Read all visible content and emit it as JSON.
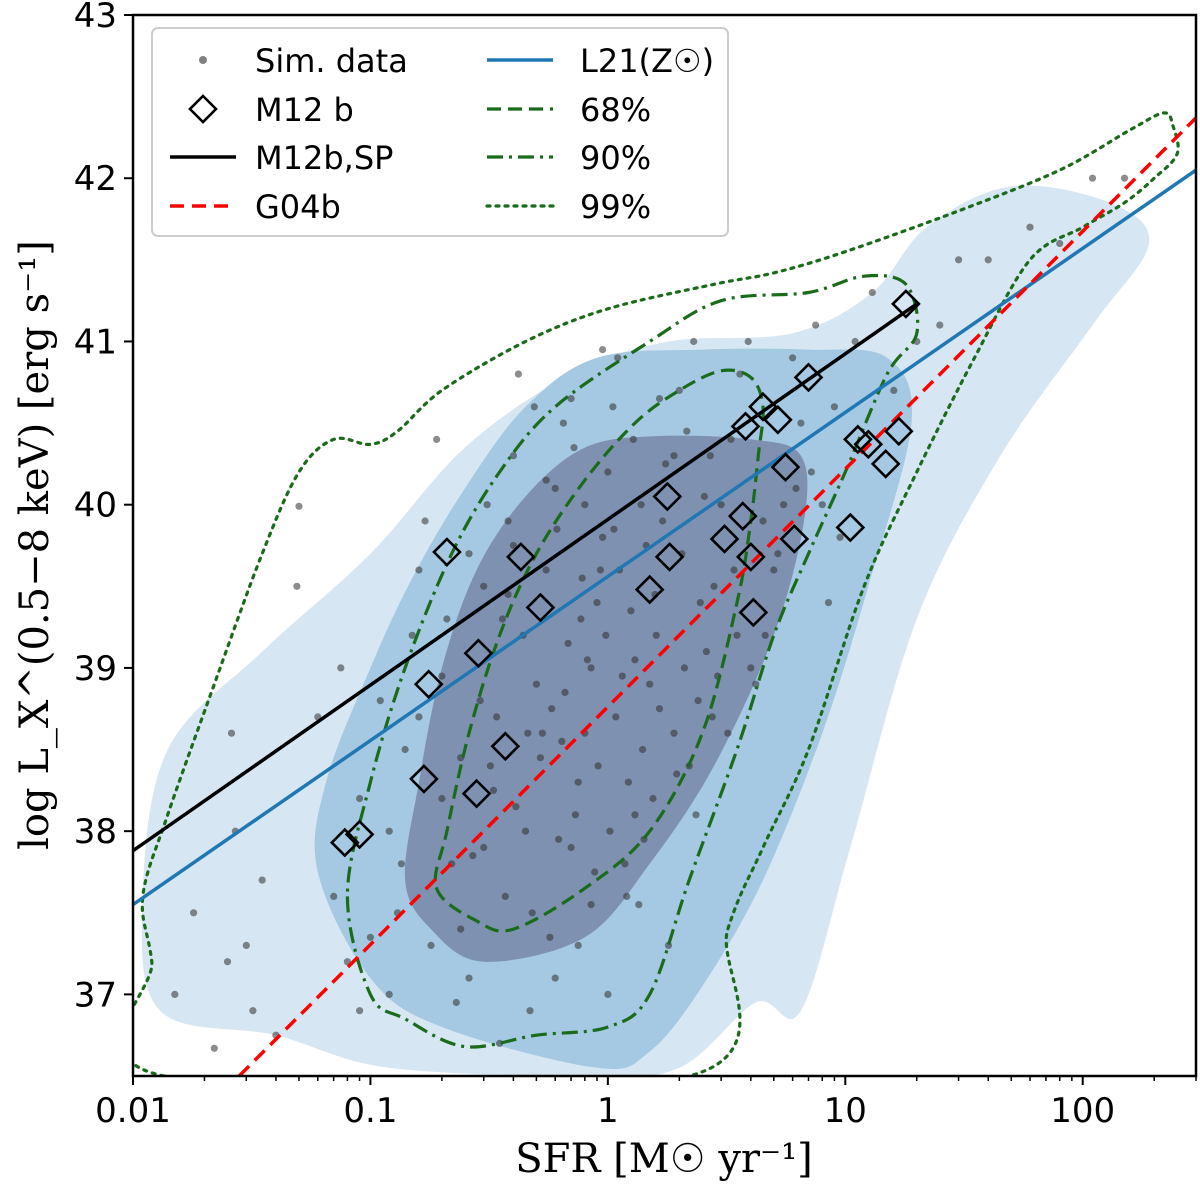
{
  "chart_data": {
    "type": "scatter",
    "xscale": "log",
    "xlim": [
      0.01,
      300
    ],
    "ylim": [
      36.5,
      43
    ],
    "x_ticks": [
      0.01,
      0.1,
      1,
      10,
      100
    ],
    "x_tick_labels": [
      "0.01",
      "0.1",
      "1",
      "10",
      "100"
    ],
    "y_ticks": [
      37,
      38,
      39,
      40,
      41,
      42,
      43
    ],
    "y_tick_labels": [
      "37",
      "38",
      "39",
      "40",
      "41",
      "42",
      "43"
    ],
    "xlabel": "SFR [M☉ yr⁻¹]",
    "ylabel": "log L_X^(0.5−8 keV) [erg s⁻¹]",
    "legend": {
      "position": "top-left",
      "entries": [
        {
          "id": "sim",
          "label": "Sim. data",
          "style": "gray-dot"
        },
        {
          "id": "m12b",
          "label": "M12 b",
          "style": "diamond"
        },
        {
          "id": "m12bsp",
          "label": "M12b,SP",
          "style": "black-line"
        },
        {
          "id": "g04b",
          "label": "G04b",
          "style": "red-dashed"
        },
        {
          "id": "l21",
          "label": "L21(Z☉)",
          "style": "blue-line"
        },
        {
          "id": "c68",
          "label": "68%",
          "style": "green-dashed"
        },
        {
          "id": "c90",
          "label": "90%",
          "style": "green-dashdot"
        },
        {
          "id": "c99",
          "label": "99%",
          "style": "green-dotted"
        }
      ]
    },
    "colors": {
      "sim": "#808080",
      "m12bsp": "#000000",
      "g04b": "#ff0000",
      "l21": "#1f77b4",
      "contour": "#1a6b1a",
      "kde_outer": "#d6e6f2",
      "kde_mid": "#a5c9e2",
      "kde_inner": "#7a8bab"
    },
    "lines": [
      {
        "name": "M12b,SP",
        "x": [
          0.01,
          20
        ],
        "y": [
          37.88,
          41.23
        ]
      },
      {
        "name": "G04b",
        "x": [
          0.028,
          300
        ],
        "y": [
          36.5,
          42.37
        ]
      },
      {
        "name": "L21(Z☉)",
        "x": [
          0.01,
          300
        ],
        "y": [
          37.55,
          42.05
        ]
      }
    ],
    "m12b_points": [
      {
        "x": 0.078,
        "y": 37.93
      },
      {
        "x": 0.09,
        "y": 37.98
      },
      {
        "x": 0.168,
        "y": 38.32
      },
      {
        "x": 0.176,
        "y": 38.9
      },
      {
        "x": 0.21,
        "y": 39.71
      },
      {
        "x": 0.28,
        "y": 38.23
      },
      {
        "x": 0.285,
        "y": 39.09
      },
      {
        "x": 0.37,
        "y": 38.52
      },
      {
        "x": 0.43,
        "y": 39.68
      },
      {
        "x": 0.52,
        "y": 39.37
      },
      {
        "x": 1.5,
        "y": 39.48
      },
      {
        "x": 1.78,
        "y": 40.05
      },
      {
        "x": 1.82,
        "y": 39.68
      },
      {
        "x": 3.1,
        "y": 39.79
      },
      {
        "x": 3.7,
        "y": 39.93
      },
      {
        "x": 3.8,
        "y": 40.48
      },
      {
        "x": 4.0,
        "y": 39.68
      },
      {
        "x": 4.1,
        "y": 39.34
      },
      {
        "x": 4.5,
        "y": 40.6
      },
      {
        "x": 5.2,
        "y": 40.52
      },
      {
        "x": 5.6,
        "y": 40.23
      },
      {
        "x": 6.1,
        "y": 39.79
      },
      {
        "x": 7.0,
        "y": 40.78
      },
      {
        "x": 10.5,
        "y": 39.86
      },
      {
        "x": 11.3,
        "y": 40.4
      },
      {
        "x": 12.5,
        "y": 40.37
      },
      {
        "x": 14.8,
        "y": 40.25
      },
      {
        "x": 16.8,
        "y": 40.45
      },
      {
        "x": 18.0,
        "y": 41.23
      }
    ],
    "kde_outer": [
      [
        0.011,
        37.6
      ],
      [
        0.013,
        36.9
      ],
      [
        0.04,
        36.75
      ],
      [
        0.12,
        36.55
      ],
      [
        0.8,
        36.5
      ],
      [
        2.0,
        36.55
      ],
      [
        4.2,
        36.95
      ],
      [
        6.5,
        36.9
      ],
      [
        10.5,
        37.9
      ],
      [
        20,
        39.3
      ],
      [
        45,
        40.3
      ],
      [
        110,
        41.1
      ],
      [
        190,
        41.6
      ],
      [
        130,
        41.85
      ],
      [
        50,
        41.95
      ],
      [
        22,
        41.7
      ],
      [
        13,
        41.3
      ],
      [
        6,
        41.05
      ],
      [
        1.8,
        41.0
      ],
      [
        0.7,
        40.8
      ],
      [
        0.25,
        40.35
      ],
      [
        0.1,
        39.7
      ],
      [
        0.035,
        39.1
      ],
      [
        0.014,
        38.5
      ]
    ],
    "kde_mid": [
      [
        0.06,
        37.75
      ],
      [
        0.1,
        37.1
      ],
      [
        0.2,
        36.8
      ],
      [
        0.9,
        36.55
      ],
      [
        1.5,
        36.65
      ],
      [
        2.5,
        37.05
      ],
      [
        4.5,
        37.7
      ],
      [
        8,
        38.6
      ],
      [
        12.5,
        39.5
      ],
      [
        19,
        40.5
      ],
      [
        15,
        40.9
      ],
      [
        7,
        40.95
      ],
      [
        2.5,
        40.95
      ],
      [
        0.9,
        40.9
      ],
      [
        0.45,
        40.6
      ],
      [
        0.25,
        40.1
      ],
      [
        0.15,
        39.55
      ],
      [
        0.1,
        39.0
      ],
      [
        0.065,
        38.3
      ]
    ],
    "kde_inner": [
      [
        0.14,
        37.7
      ],
      [
        0.18,
        37.4
      ],
      [
        0.3,
        37.2
      ],
      [
        0.8,
        37.35
      ],
      [
        1.5,
        37.8
      ],
      [
        2.8,
        38.4
      ],
      [
        5,
        39.2
      ],
      [
        6.7,
        39.9
      ],
      [
        6.5,
        40.3
      ],
      [
        4,
        40.4
      ],
      [
        1.6,
        40.42
      ],
      [
        0.8,
        40.35
      ],
      [
        0.45,
        40.05
      ],
      [
        0.28,
        39.6
      ],
      [
        0.2,
        39.0
      ],
      [
        0.16,
        38.3
      ]
    ],
    "contour_68": [
      [
        0.19,
        37.65
      ],
      [
        0.28,
        37.45
      ],
      [
        0.4,
        37.4
      ],
      [
        0.8,
        37.65
      ],
      [
        1.5,
        38.0
      ],
      [
        2.5,
        38.6
      ],
      [
        3.5,
        39.4
      ],
      [
        4.0,
        39.9
      ],
      [
        4.3,
        40.3
      ],
      [
        4.5,
        40.6
      ],
      [
        4.0,
        40.78
      ],
      [
        3.0,
        40.82
      ],
      [
        2.0,
        40.7
      ],
      [
        1.3,
        40.5
      ],
      [
        0.8,
        40.15
      ],
      [
        0.5,
        39.7
      ],
      [
        0.35,
        39.2
      ],
      [
        0.26,
        38.6
      ],
      [
        0.21,
        38.0
      ]
    ],
    "contour_90": [
      [
        0.08,
        37.6
      ],
      [
        0.1,
        37.0
      ],
      [
        0.14,
        36.85
      ],
      [
        0.25,
        36.68
      ],
      [
        0.5,
        36.75
      ],
      [
        1.0,
        36.8
      ],
      [
        1.5,
        37.0
      ],
      [
        2.2,
        37.7
      ],
      [
        3.5,
        38.5
      ],
      [
        5,
        39.2
      ],
      [
        7,
        39.7
      ],
      [
        10,
        40.2
      ],
      [
        15,
        40.8
      ],
      [
        20,
        41.05
      ],
      [
        18,
        41.35
      ],
      [
        12,
        41.4
      ],
      [
        7,
        41.3
      ],
      [
        3,
        41.25
      ],
      [
        1.5,
        41.0
      ],
      [
        0.6,
        40.6
      ],
      [
        0.35,
        40.2
      ],
      [
        0.22,
        39.7
      ],
      [
        0.14,
        39.0
      ],
      [
        0.1,
        38.3
      ]
    ],
    "contour_99": [
      [
        0.0135,
        36.5
      ],
      [
        0.012,
        37.2
      ],
      [
        0.011,
        37.6
      ],
      [
        0.014,
        38.1
      ],
      [
        0.022,
        38.9
      ],
      [
        0.035,
        39.7
      ],
      [
        0.05,
        40.2
      ],
      [
        0.07,
        40.4
      ],
      [
        0.1,
        40.37
      ],
      [
        0.13,
        40.45
      ],
      [
        0.2,
        40.7
      ],
      [
        0.45,
        41.0
      ],
      [
        1.0,
        41.2
      ],
      [
        2.8,
        41.35
      ],
      [
        5,
        41.42
      ],
      [
        10,
        41.55
      ],
      [
        30,
        41.8
      ],
      [
        80,
        42.05
      ],
      [
        160,
        42.3
      ],
      [
        220,
        42.4
      ],
      [
        240,
        42.32
      ],
      [
        250,
        42.15
      ],
      [
        200,
        42.0
      ],
      [
        150,
        41.85
      ],
      [
        100,
        41.7
      ],
      [
        60,
        41.5
      ],
      [
        35,
        40.9
      ],
      [
        20,
        40.2
      ],
      [
        12,
        39.5
      ],
      [
        7,
        38.5
      ],
      [
        4.5,
        37.9
      ],
      [
        3.2,
        37.4
      ],
      [
        2.2,
        36.5
      ]
    ],
    "sim_points": [
      [
        0.022,
        36.67
      ],
      [
        0.025,
        37.2
      ],
      [
        0.03,
        37.3
      ],
      [
        0.027,
        38.0
      ],
      [
        0.026,
        38.6
      ],
      [
        0.05,
        39.99
      ],
      [
        0.049,
        39.5
      ],
      [
        0.07,
        37.6
      ],
      [
        0.08,
        37.2
      ],
      [
        0.09,
        36.9
      ],
      [
        0.1,
        37.35
      ],
      [
        0.12,
        37.0
      ],
      [
        0.13,
        37.5
      ],
      [
        0.14,
        38.5
      ],
      [
        0.11,
        38.8
      ],
      [
        0.15,
        39.2
      ],
      [
        0.16,
        39.6
      ],
      [
        0.17,
        39.9
      ],
      [
        0.19,
        40.4
      ],
      [
        0.2,
        38.2
      ],
      [
        0.22,
        37.8
      ],
      [
        0.24,
        37.4
      ],
      [
        0.26,
        37.1
      ],
      [
        0.3,
        37.9
      ],
      [
        0.32,
        38.4
      ],
      [
        0.34,
        38.7
      ],
      [
        0.36,
        39.3
      ],
      [
        0.38,
        39.9
      ],
      [
        0.4,
        40.3
      ],
      [
        0.42,
        40.8
      ],
      [
        0.45,
        38.0
      ],
      [
        0.48,
        37.5
      ],
      [
        0.5,
        38.9
      ],
      [
        0.55,
        39.6
      ],
      [
        0.6,
        40.1
      ],
      [
        0.65,
        40.5
      ],
      [
        0.7,
        37.9
      ],
      [
        0.75,
        38.3
      ],
      [
        0.8,
        38.6
      ],
      [
        0.85,
        39.0
      ],
      [
        0.9,
        39.4
      ],
      [
        0.95,
        39.8
      ],
      [
        1.0,
        40.2
      ],
      [
        1.05,
        40.6
      ],
      [
        1.1,
        40.9
      ],
      [
        1.2,
        37.6
      ],
      [
        1.3,
        38.1
      ],
      [
        1.4,
        38.5
      ],
      [
        1.5,
        38.9
      ],
      [
        1.6,
        39.2
      ],
      [
        1.7,
        39.9
      ],
      [
        1.9,
        40.3
      ],
      [
        2.0,
        40.7
      ],
      [
        2.2,
        38.4
      ],
      [
        2.4,
        38.8
      ],
      [
        2.6,
        39.1
      ],
      [
        2.8,
        39.5
      ],
      [
        3.0,
        40.0
      ],
      [
        3.3,
        40.4
      ],
      [
        3.6,
        40.8
      ],
      [
        3.9,
        41.0
      ],
      [
        4.2,
        38.9
      ],
      [
        4.6,
        39.2
      ],
      [
        5.0,
        39.6
      ],
      [
        5.5,
        40.0
      ],
      [
        6.0,
        40.9
      ],
      [
        6.5,
        40.5
      ],
      [
        7.5,
        41.1
      ],
      [
        8.5,
        39.4
      ],
      [
        9,
        40.6
      ],
      [
        11,
        41.0
      ],
      [
        13,
        41.3
      ],
      [
        16,
        40.7
      ],
      [
        20,
        41.0
      ],
      [
        25,
        41.1
      ],
      [
        30,
        41.5
      ],
      [
        40,
        41.5
      ],
      [
        60,
        41.7
      ],
      [
        80,
        41.6
      ],
      [
        110,
        42.0
      ],
      [
        150,
        42.0
      ],
      [
        0.33,
        38.25
      ],
      [
        0.58,
        38.75
      ],
      [
        0.68,
        39.15
      ],
      [
        0.78,
        39.55
      ],
      [
        1.15,
        38.95
      ],
      [
        1.25,
        39.35
      ],
      [
        1.45,
        39.75
      ],
      [
        0.52,
        38.45
      ],
      [
        0.62,
        37.95
      ],
      [
        0.88,
        37.75
      ],
      [
        1.35,
        37.55
      ],
      [
        0.29,
        38.8
      ],
      [
        0.44,
        39.2
      ],
      [
        0.55,
        40.15
      ],
      [
        0.72,
        40.35
      ],
      [
        1.65,
        40.65
      ],
      [
        2.3,
        41.0
      ],
      [
        2.7,
        40.3
      ],
      [
        3.4,
        39.6
      ],
      [
        4.0,
        39.0
      ],
      [
        5.2,
        39.7
      ],
      [
        7.2,
        40.2
      ],
      [
        9.5,
        39.8
      ],
      [
        0.18,
        37.3
      ],
      [
        0.23,
        36.95
      ],
      [
        0.35,
        36.7
      ],
      [
        0.47,
        36.9
      ],
      [
        0.6,
        37.1
      ],
      [
        0.75,
        37.3
      ],
      [
        1.0,
        37.0
      ],
      [
        1.8,
        37.3
      ],
      [
        0.16,
        38.7
      ],
      [
        0.21,
        39.3
      ],
      [
        0.26,
        39.7
      ],
      [
        0.31,
        40.0
      ],
      [
        0.7,
        40.65
      ],
      [
        0.95,
        40.95
      ],
      [
        0.41,
        38.15
      ],
      [
        0.53,
        38.6
      ],
      [
        0.66,
        38.85
      ],
      [
        0.82,
        39.05
      ],
      [
        0.98,
        39.2
      ],
      [
        1.08,
        38.7
      ],
      [
        1.22,
        38.3
      ],
      [
        1.55,
        38.2
      ],
      [
        1.9,
        38.6
      ],
      [
        2.1,
        39.0
      ],
      [
        2.45,
        39.4
      ],
      [
        2.9,
        38.95
      ],
      [
        3.2,
        38.6
      ],
      [
        0.24,
        38.45
      ],
      [
        0.37,
        37.6
      ],
      [
        0.57,
        37.35
      ],
      [
        0.91,
        38.4
      ],
      [
        1.12,
        39.6
      ],
      [
        1.38,
        40.0
      ],
      [
        1.58,
        39.45
      ],
      [
        2.05,
        39.7
      ],
      [
        2.55,
        40.05
      ],
      [
        0.49,
        40.6
      ],
      [
        0.8,
        40.0
      ],
      [
        1.28,
        40.4
      ],
      [
        1.75,
        40.25
      ],
      [
        2.15,
        40.45
      ],
      [
        0.38,
        39.45
      ],
      [
        0.61,
        39.85
      ],
      [
        0.73,
        38.1
      ],
      [
        0.85,
        37.55
      ],
      [
        1.02,
        38.0
      ],
      [
        1.18,
        37.8
      ],
      [
        1.42,
        37.95
      ],
      [
        0.27,
        37.85
      ],
      [
        0.2,
        38.95
      ],
      [
        0.3,
        39.5
      ],
      [
        0.4,
        39.75
      ],
      [
        0.46,
        38.6
      ],
      [
        0.64,
        38.55
      ],
      [
        0.77,
        39.3
      ],
      [
        0.93,
        39.6
      ],
      [
        1.06,
        39.85
      ],
      [
        1.3,
        39.05
      ],
      [
        1.65,
        38.75
      ],
      [
        1.95,
        38.35
      ],
      [
        2.35,
        38.1
      ],
      [
        2.75,
        38.7
      ],
      [
        3.5,
        39.2
      ],
      [
        4.5,
        39.9
      ],
      [
        6.2,
        40.1
      ],
      [
        8,
        40.0
      ],
      [
        0.09,
        38.2
      ],
      [
        0.12,
        38.0
      ],
      [
        0.135,
        37.8
      ],
      [
        0.06,
        38.7
      ],
      [
        0.075,
        39.0
      ],
      [
        0.035,
        37.7
      ],
      [
        0.032,
        36.9
      ],
      [
        0.04,
        36.75
      ],
      [
        0.015,
        37.0
      ],
      [
        0.018,
        37.5
      ]
    ]
  }
}
